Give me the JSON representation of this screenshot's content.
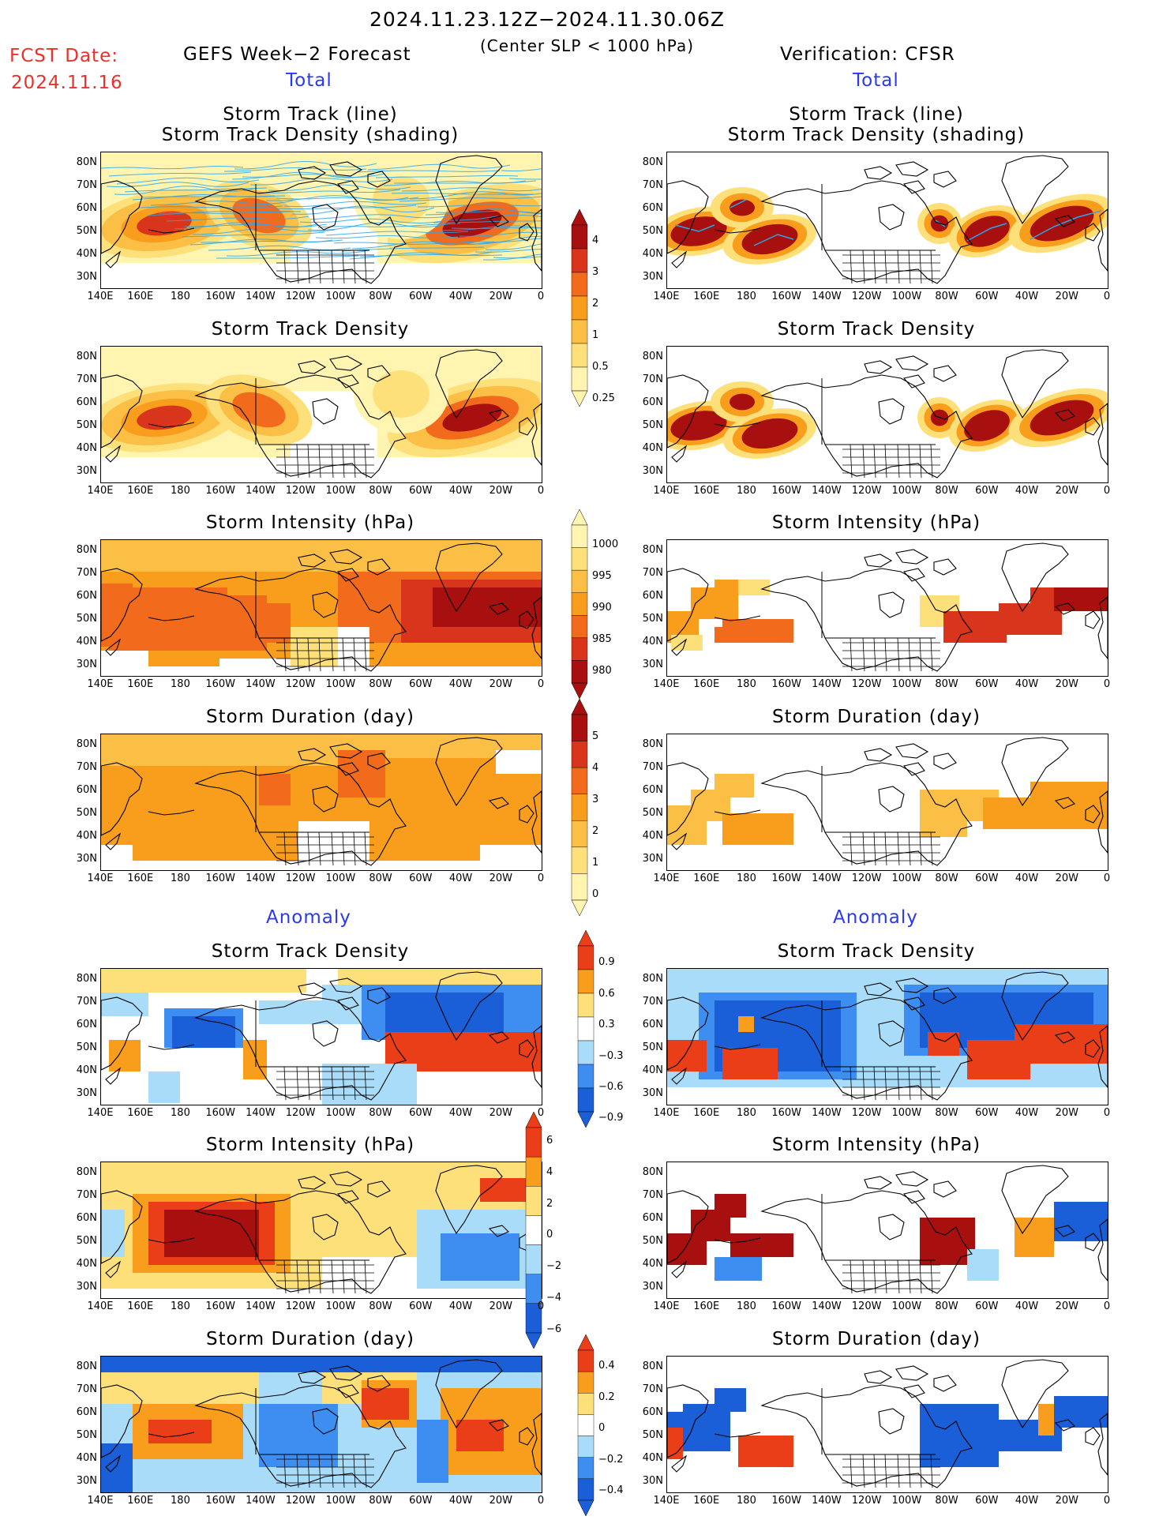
{
  "header": {
    "title": "2024.11.23.12Z−2024.11.30.06Z",
    "subtitle": "(Center SLP < 1000 hPa)",
    "fcst_label": "FCST Date:",
    "fcst_date": "2024.11.16",
    "left_title": "GEFS Week−2 Forecast",
    "right_title": "Verification: CFSR",
    "left_total": "Total",
    "right_total": "Total",
    "left_anomaly": "Anomaly",
    "right_anomaly": "Anomaly"
  },
  "panel_titles": {
    "track_line": "Storm Track (line)",
    "track_shading": "Storm Track Density (shading)",
    "density": "Storm Track Density",
    "intensity": "Storm Intensity (hPa)",
    "duration": "Storm Duration (day)"
  },
  "axes": {
    "lat_labels": [
      "80N",
      "70N",
      "60N",
      "50N",
      "40N",
      "30N"
    ],
    "lon_labels": [
      "140E",
      "160E",
      "180",
      "160W",
      "140W",
      "120W",
      "100W",
      "80W",
      "60W",
      "40W",
      "20W",
      "0"
    ]
  },
  "colorbars": {
    "density_total": [
      "4",
      "3",
      "2",
      "1",
      "0.5",
      "0.25"
    ],
    "intensity_total": [
      "1000",
      "995",
      "990",
      "985",
      "980"
    ],
    "duration_total": [
      "5",
      "4",
      "3",
      "2",
      "1",
      "0"
    ],
    "density_anom": [
      "0.9",
      "0.6",
      "0.3",
      "−0.3",
      "−0.6",
      "−0.9"
    ],
    "intensity_anom": [
      "6",
      "4",
      "2",
      "0",
      "−2",
      "−4",
      "−6"
    ],
    "duration_anom": [
      "0.4",
      "0.2",
      "0",
      "−0.2",
      "−0.4"
    ]
  },
  "colors": {
    "total_scale": [
      "#fff5b0",
      "#fde07a",
      "#fbbf45",
      "#f99d1c",
      "#f26b1d",
      "#d9341c",
      "#a80f0f"
    ],
    "anom_scale": [
      "#1b5fd8",
      "#3d8ef0",
      "#a9dcf8",
      "#ffffff",
      "#fde07a",
      "#f99d1c",
      "#ea3e19"
    ],
    "track_line": "#2aa6ea"
  }
}
